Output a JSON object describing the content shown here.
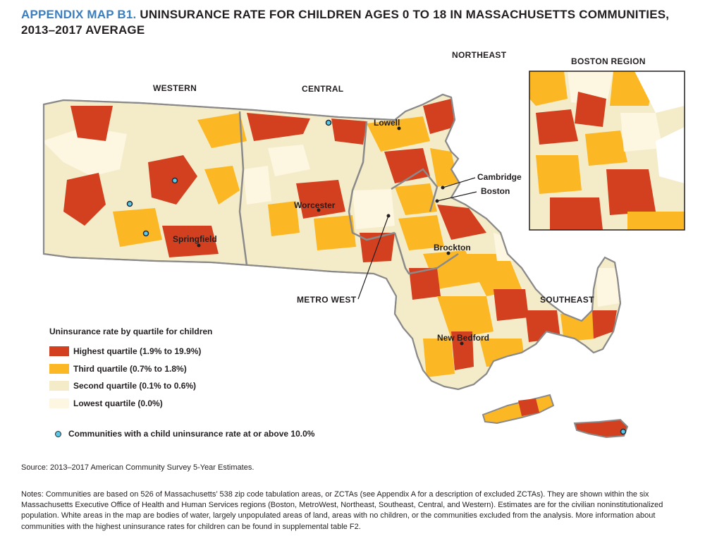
{
  "title": {
    "prefix": "APPENDIX MAP B1.",
    "text": "UNINSURANCE RATE FOR CHILDREN AGES 0 TO 18 IN MASSACHUSETTS COMMUNITIES, 2013–2017 AVERAGE"
  },
  "regions": {
    "western": "WESTERN",
    "central": "CENTRAL",
    "northeast": "NORTHEAST",
    "boston_region": "BOSTON REGION",
    "metro_west": "METRO WEST",
    "southeast": "SOUTHEAST"
  },
  "cities": {
    "lowell": "Lowell",
    "cambridge": "Cambridge",
    "boston": "Boston",
    "worcester": "Worcester",
    "springfield": "Springfield",
    "brockton": "Brockton",
    "new_bedford": "New Bedford"
  },
  "legend": {
    "title": "Uninsurance rate by quartile for children",
    "items": [
      {
        "label": "Highest quartile (1.9% to 19.9%)",
        "color": "#d3401f"
      },
      {
        "label": "Third quartile (0.7% to 1.8%)",
        "color": "#fbb824"
      },
      {
        "label": "Second quartile (0.1% to 0.6%)",
        "color": "#f4ecc9"
      },
      {
        "label": "Lowest quartile (0.0%)",
        "color": "#fdf6e1"
      }
    ],
    "dot_label": "Communities with a child uninsurance rate at or above 10.0%",
    "dot_color": "#5bc8e6"
  },
  "colors": {
    "highest": "#d3401f",
    "third": "#fbb824",
    "second": "#f4ecc9",
    "lowest": "#fdf6e1",
    "border": "#8a8a8a",
    "title_accent": "#3a7ec1"
  },
  "source": "Source: 2013–2017 American Community Survey 5-Year Estimates.",
  "notes": "Notes: Communities are based on 526 of Massachusetts’ 538 zip code tabulation areas, or ZCTAs (see Appendix A for a description of excluded ZCTAs). They are shown within the six Massachusetts Executive Office of Health and Human Services regions (Boston, MetroWest, Northeast, Southeast, Central, and Western). Estimates are for the civilian noninstitutionalized population. White areas in the map are bodies of water, largely unpopulated areas of land, areas with no children, or the communities excluded from the analysis. More information about communities with the highest uninsurance rates for children can be found in supplemental table F2."
}
